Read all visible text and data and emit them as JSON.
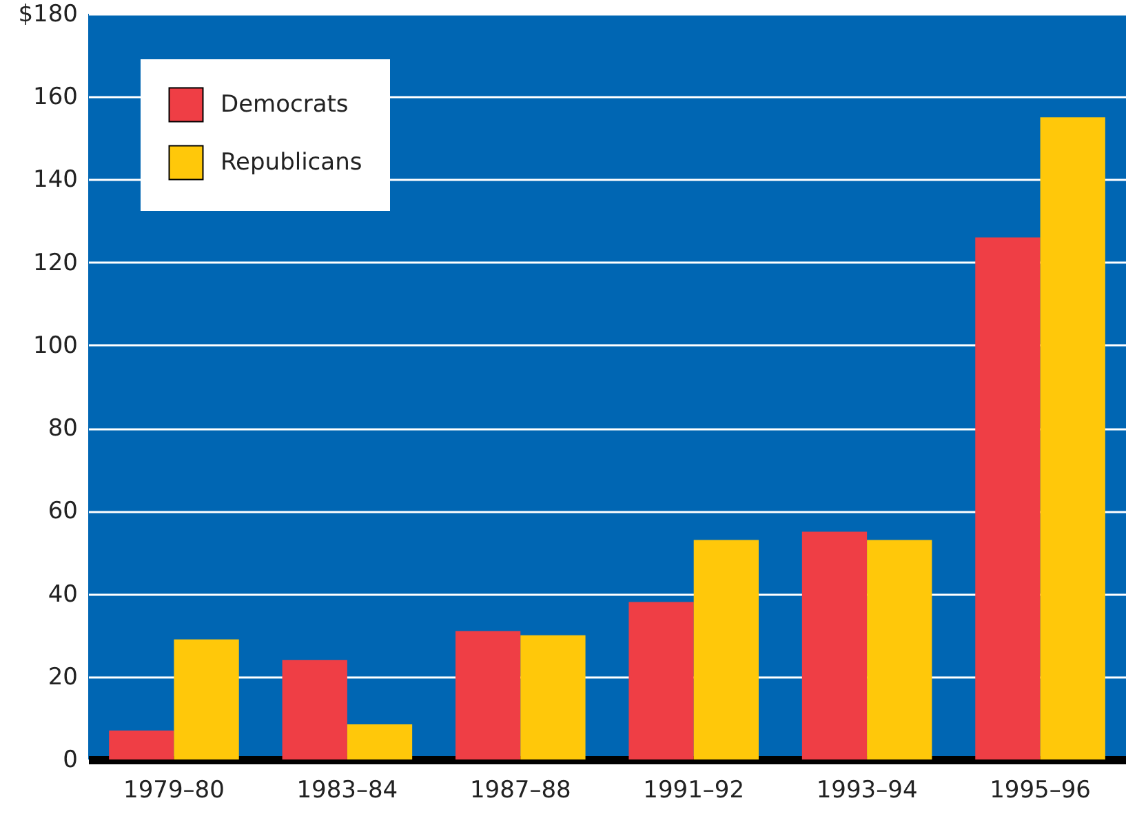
{
  "chart_data": {
    "type": "bar",
    "categories": [
      "1979–80",
      "1983–84",
      "1987–88",
      "1991–92",
      "1993–94",
      "1995–96"
    ],
    "series": [
      {
        "name": "Democrats",
        "color": "#ef3e45",
        "values": [
          7,
          24,
          31,
          38,
          55,
          126
        ]
      },
      {
        "name": "Republicans",
        "color": "#ffc80a",
        "values": [
          29,
          8.5,
          30,
          53,
          53,
          155
        ]
      }
    ],
    "ylim": [
      0,
      180
    ],
    "yticks": [
      0,
      20,
      40,
      60,
      80,
      100,
      120,
      140,
      160,
      {
        "value": 180,
        "label": "$180"
      }
    ],
    "grid": "y",
    "legend": "top left"
  }
}
